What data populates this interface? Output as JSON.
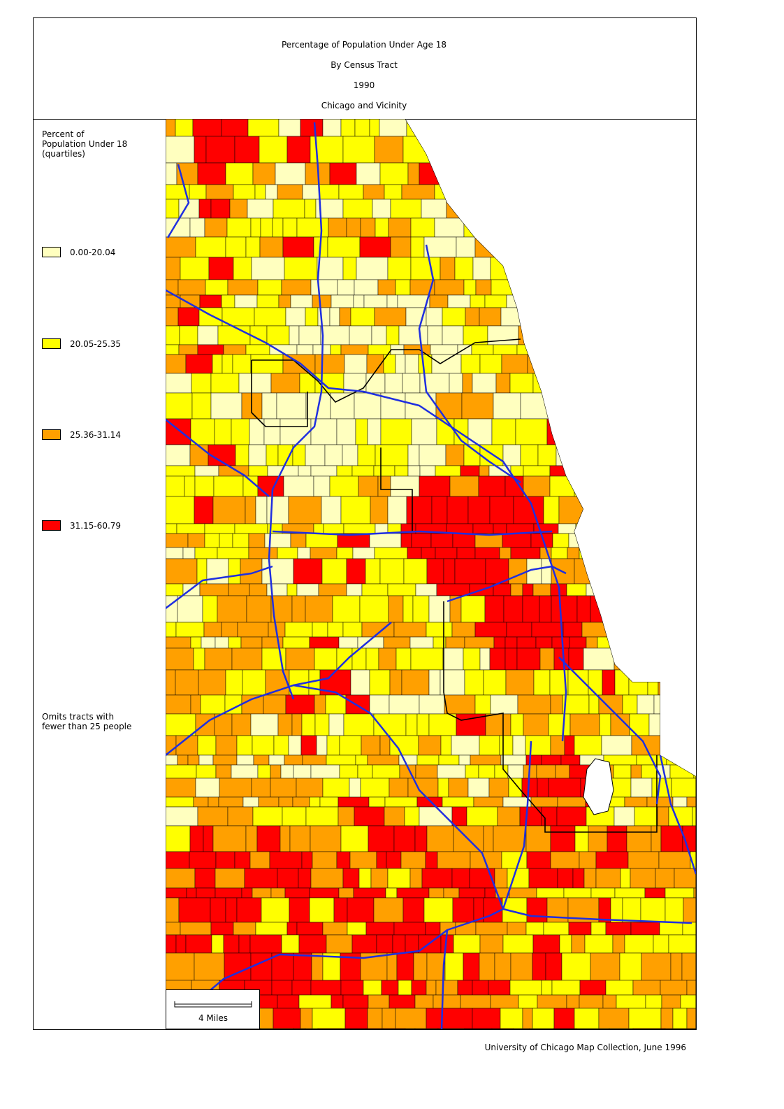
{
  "header": {
    "title_lines": [
      "Percentage of Population Under Age 18",
      "By Census Tract",
      "1990",
      "Chicago and Vicinity"
    ]
  },
  "legend": {
    "title_lines": [
      "Percent of",
      "Population Under 18",
      "(quartiles)"
    ],
    "items": [
      {
        "label": "0.00-20.04",
        "color": "#ffffbf"
      },
      {
        "label": "20.05-25.35",
        "color": "#ffff00"
      },
      {
        "label": "25.36-31.14",
        "color": "#ffa000"
      },
      {
        "label": "31.15-60.79",
        "color": "#ff0000"
      }
    ],
    "note_lines": [
      "Omits tracts with",
      "fewer than 25 people"
    ]
  },
  "scale_bar": {
    "label": "4 Miles"
  },
  "credit": "University of Chicago Map Collection, June 1996"
}
